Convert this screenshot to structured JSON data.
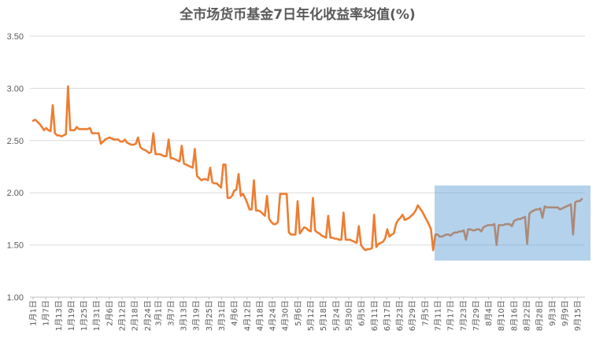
{
  "chart_data": {
    "type": "line",
    "title": "全市场货币基金7日年化收益率均值(%)",
    "xlabel": "",
    "ylabel": "",
    "ylim": [
      1.0,
      3.5
    ],
    "y_ticks": [
      "1.00",
      "1.50",
      "2.00",
      "2.50",
      "3.00",
      "3.50"
    ],
    "grid": true,
    "legend": "none",
    "x_ticks": [
      "1月1日",
      "1月7日",
      "1月13日",
      "1月19日",
      "1月25日",
      "1月31日",
      "2月6日",
      "2月12日",
      "2月18日",
      "2月24日",
      "3月1日",
      "3月7日",
      "3月13日",
      "3月19日",
      "3月25日",
      "3月31日",
      "4月6日",
      "4月12日",
      "4月18日",
      "4月24日",
      "4月30日",
      "5月6日",
      "5月12日",
      "5月18日",
      "5月24日",
      "5月30日",
      "6月5日",
      "6月11日",
      "6月17日",
      "6月23日",
      "6月29日",
      "7月5日",
      "7月11日",
      "7月17日",
      "7月23日",
      "7月29日",
      "8月4日",
      "8月10日",
      "8月16日",
      "8月22日",
      "8月28日",
      "9月3日",
      "9月9日",
      "9月15日"
    ],
    "x_range": [
      "1月1日",
      "9月17日"
    ],
    "series": [
      {
        "values": [
          2.69,
          2.7,
          2.68,
          2.66,
          2.63,
          2.6,
          2.62,
          2.6,
          2.59,
          2.84,
          2.57,
          2.55,
          2.55,
          2.54,
          2.55,
          2.56,
          3.02,
          2.6,
          2.6,
          2.6,
          2.63,
          2.61,
          2.61,
          2.61,
          2.61,
          2.61,
          2.62,
          2.57,
          2.57,
          2.57,
          2.57,
          2.47,
          2.49,
          2.51,
          2.52,
          2.53,
          2.52,
          2.51,
          2.51,
          2.51,
          2.49,
          2.49,
          2.51,
          2.48,
          2.47,
          2.46,
          2.46,
          2.47,
          2.53,
          2.44,
          2.42,
          2.41,
          2.4,
          2.38,
          2.39,
          2.57,
          2.37,
          2.37,
          2.37,
          2.36,
          2.35,
          2.35,
          2.51,
          2.33,
          2.33,
          2.32,
          2.31,
          2.3,
          2.45,
          2.28,
          2.27,
          2.26,
          2.25,
          2.24,
          2.42,
          2.16,
          2.14,
          2.12,
          2.13,
          2.13,
          2.12,
          2.24,
          2.1,
          2.09,
          2.09,
          2.07,
          2.05,
          2.27,
          2.27,
          1.95,
          1.95,
          1.97,
          2.02,
          2.03,
          2.18,
          1.97,
          1.99,
          1.95,
          1.9,
          1.84,
          1.84,
          2.12,
          1.83,
          1.83,
          1.82,
          1.8,
          1.78,
          1.97,
          1.75,
          1.72,
          1.7,
          1.7,
          1.72,
          1.99,
          1.99,
          1.99,
          1.99,
          1.62,
          1.6,
          1.6,
          1.6,
          1.92,
          1.61,
          1.64,
          1.67,
          1.66,
          1.64,
          1.63,
          1.95,
          1.64,
          1.62,
          1.61,
          1.59,
          1.58,
          1.57,
          1.78,
          1.57,
          1.57,
          1.56,
          1.56,
          1.55,
          1.55,
          1.81,
          1.55,
          1.55,
          1.55,
          1.54,
          1.53,
          1.52,
          1.68,
          1.5,
          1.47,
          1.45,
          1.46,
          1.46,
          1.47,
          1.79,
          1.48,
          1.51,
          1.52,
          1.53,
          1.56,
          1.65,
          1.58,
          1.6,
          1.61,
          1.7,
          1.74,
          1.76,
          1.79,
          1.74,
          1.75,
          1.76,
          1.78,
          1.8,
          1.83,
          1.88,
          1.85,
          1.82,
          1.78,
          1.74,
          1.7,
          1.65,
          1.45,
          1.6,
          1.6,
          1.58,
          1.58,
          1.59,
          1.6,
          1.6,
          1.59,
          1.61,
          1.62,
          1.62,
          1.63,
          1.63,
          1.64,
          1.55,
          1.65,
          1.65,
          1.64,
          1.64,
          1.65,
          1.65,
          1.63,
          1.67,
          1.68,
          1.69,
          1.69,
          1.69,
          1.7,
          1.5,
          1.69,
          1.69,
          1.69,
          1.7,
          1.7,
          1.7,
          1.68,
          1.73,
          1.74,
          1.75,
          1.75,
          1.76,
          1.77,
          1.51,
          1.8,
          1.82,
          1.83,
          1.84,
          1.84,
          1.85,
          1.76,
          1.87,
          1.86,
          1.86,
          1.86,
          1.86,
          1.86,
          1.86,
          1.84,
          1.85,
          1.86,
          1.87,
          1.88,
          1.89,
          1.6,
          1.91,
          1.92,
          1.92,
          1.94
        ],
        "color": "#ed7d31"
      }
    ],
    "highlight_region": {
      "x_start": "7月11日",
      "x_end": "9月17日",
      "y_range": [
        1.35,
        2.07
      ],
      "color": "#5b9bd5",
      "opacity": 0.45
    }
  }
}
